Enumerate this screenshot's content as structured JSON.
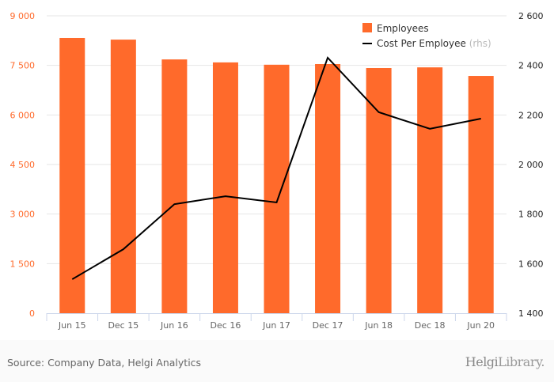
{
  "chart_data": {
    "type": "bar+line",
    "categories": [
      "Jun 15",
      "Dec 15",
      "Jun 16",
      "Dec 16",
      "Jun 17",
      "Dec 17",
      "Jun 18",
      "Dec 18",
      "Jun 20"
    ],
    "series": [
      {
        "name": "Employees",
        "type": "bar",
        "axis": "left",
        "color": "#ff6a2b",
        "values": [
          8330,
          8280,
          7680,
          7590,
          7520,
          7540,
          7420,
          7440,
          7180
        ]
      },
      {
        "name": "Cost Per Employee",
        "suffix": "(rhs)",
        "type": "line",
        "axis": "right",
        "color": "#000000",
        "values": [
          1537,
          1658,
          1840,
          1872,
          1847,
          2431,
          2211,
          2144,
          2185
        ]
      }
    ],
    "left_axis": {
      "min": 0,
      "max": 9000,
      "ticks": [
        0,
        1500,
        3000,
        4500,
        6000,
        7500,
        9000
      ],
      "tick_labels": [
        "0",
        "1 500",
        "3 000",
        "4 500",
        "6 000",
        "7 500",
        "9 000"
      ],
      "color": "#ff6a2b"
    },
    "right_axis": {
      "min": 1400,
      "max": 2600,
      "ticks": [
        1400,
        1600,
        1800,
        2000,
        2200,
        2400,
        2600
      ],
      "tick_labels": [
        "1 400",
        "1 600",
        "1 800",
        "2 000",
        "2 200",
        "2 400",
        "2 600"
      ]
    },
    "legend_position": "top-right",
    "grid": true
  },
  "footer": {
    "source": "Source: Company Data, Helgi Analytics",
    "logo_a": "Helgi",
    "logo_b": "Library."
  }
}
